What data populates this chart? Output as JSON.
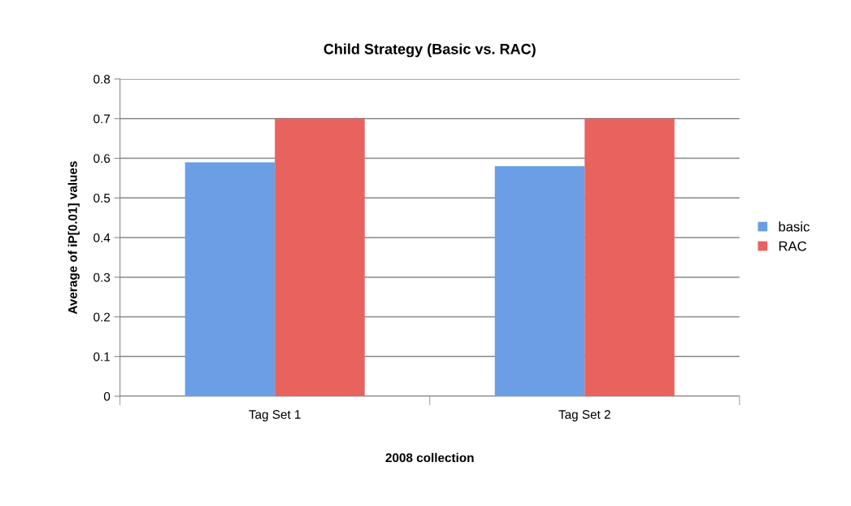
{
  "chart_data": {
    "type": "bar",
    "title": "Child Strategy (Basic vs. RAC)",
    "xlabel": "2008 collection",
    "ylabel": "Average of iP[0.01] values",
    "categories": [
      "Tag Set 1",
      "Tag Set 2"
    ],
    "series": [
      {
        "name": "basic",
        "color": "#6a9fe6",
        "values": [
          0.59,
          0.58
        ]
      },
      {
        "name": "RAC",
        "color": "#e8625e",
        "values": [
          0.7,
          0.7
        ]
      }
    ],
    "ylim": [
      0,
      0.8
    ],
    "yticks": [
      0,
      0.1,
      0.2,
      0.3,
      0.4,
      0.5,
      0.6,
      0.7,
      0.8
    ],
    "grid": "y",
    "legend": "right"
  }
}
